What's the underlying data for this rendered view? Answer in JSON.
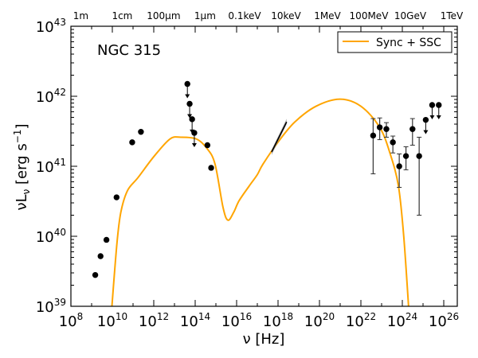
{
  "chart_data": {
    "type": "scatter",
    "annotation": "NGC 315",
    "xlabel": "ν [Hz]",
    "ylabel": "νL",
    "ylabel_sub": "ν",
    "ylabel_unit": " [erg s",
    "ylabel_unit_sup": "−1",
    "ylabel_close": "]",
    "x_scale": "log",
    "y_scale": "log",
    "xlim": [
      100000000.0,
      4.5e+26
    ],
    "ylim": [
      1e+39,
      1e+43
    ],
    "x_tick_exponents": [
      "8",
      "10",
      "12",
      "14",
      "16",
      "18",
      "20",
      "22",
      "24",
      "26"
    ],
    "y_tick_exponents": [
      "39",
      "40",
      "41",
      "42",
      "43"
    ],
    "tick_base": "10",
    "top_axis_labels": [
      {
        "label": "1m",
        "nu": 300000000.0
      },
      {
        "label": "1cm",
        "nu": 30000000000.0
      },
      {
        "label": "100μm",
        "nu": 3000000000000.0
      },
      {
        "label": "1μm",
        "nu": 300000000000000.0
      },
      {
        "label": "0.1keV",
        "nu": 2.42e+16
      },
      {
        "label": "10keV",
        "nu": 2.42e+18
      },
      {
        "label": "1MeV",
        "nu": 2.42e+20
      },
      {
        "label": "100MeV",
        "nu": 2.42e+22
      },
      {
        "label": "10GeV",
        "nu": 2.42e+24
      },
      {
        "label": "1TeV",
        "nu": 2.42e+26
      }
    ],
    "legend": {
      "placement": "top-right",
      "entries": [
        {
          "name": "Sync + SSC",
          "color": "#ffa500"
        }
      ]
    },
    "model_color": "#ffa500",
    "point_color": "#000000",
    "model_curve": [
      [
        9000000000.0,
        8e+38
      ],
      [
        16600000000.0,
        7.8e+39
      ],
      [
        25700000000.0,
        2.2e+40
      ],
      [
        54000000000.0,
        4.5e+40
      ],
      [
        174000000000.0,
        6.9e+40
      ],
      [
        1020000000000.0,
        1.38e+41
      ],
      [
        6000000000000.0,
        2.45e+41
      ],
      [
        20000000000000.0,
        2.6e+41
      ],
      [
        115000000000000.0,
        2.45e+41
      ],
      [
        380000000000000.0,
        1.78e+41
      ],
      [
        910000000000000.0,
        1.07e+41
      ],
      [
        2200000000000000.0,
        2.6e+40
      ],
      [
        3800000000000000.0,
        1.7e+40
      ],
      [
        7200000000000000.0,
        2.2e+40
      ],
      [
        1.3e+16,
        3.2e+40
      ],
      [
        4e+16,
        5.2e+40
      ],
      [
        1e+17,
        7.6e+40
      ],
      [
        1.86e+17,
        1.07e+41
      ],
      [
        1.1e+18,
        2.3e+41
      ],
      [
        6.5e+18,
        4.3e+41
      ],
      [
        6.8e+19,
        7.2e+41
      ],
      [
        9.8e+20,
        9.1e+41
      ],
      [
        1e+22,
        7.2e+41
      ],
      [
        8.1e+22,
        3.6e+41
      ],
      [
        2.6e+23,
        1.5e+41
      ],
      [
        6.5e+23,
        5.2e+40
      ],
      [
        1.17e+24,
        1e+40
      ],
      [
        2.1e+24,
        8e+38
      ]
    ],
    "detections": [
      {
        "x": 1500000000.0,
        "y": 2.8e+39
      },
      {
        "x": 2700000000.0,
        "y": 5.2e+39
      },
      {
        "x": 5200000000.0,
        "y": 8.9e+39
      },
      {
        "x": 16000000000.0,
        "y": 3.6e+40
      },
      {
        "x": 91000000000.0,
        "y": 2.2e+41
      },
      {
        "x": 240000000000.0,
        "y": 3.1e+41
      },
      {
        "x": 390000000000000.0,
        "y": 2e+41
      },
      {
        "x": 590000000000000.0,
        "y": 9.5e+40
      },
      {
        "x": 3.9e+22,
        "y": 2.75e+41,
        "ylo": 7.8e+40,
        "yhi": 4.8e+41
      },
      {
        "x": 8.1e+22,
        "y": 3.6e+41,
        "ylo": 2.4e+41,
        "yhi": 4.9e+41
      },
      {
        "x": 1.7e+23,
        "y": 3.4e+41,
        "ylo": 2.6e+41,
        "yhi": 4.2e+41
      },
      {
        "x": 3.5e+23,
        "y": 2.2e+41,
        "ylo": 1.55e+41,
        "yhi": 2.7e+41
      },
      {
        "x": 7.1e+23,
        "y": 1e+41,
        "ylo": 5e+40,
        "yhi": 1.5e+41
      },
      {
        "x": 1.5e+24,
        "y": 1.4e+41,
        "ylo": 8.9e+40,
        "yhi": 1.9e+41
      },
      {
        "x": 3.1e+24,
        "y": 3.4e+41,
        "ylo": 2e+41,
        "yhi": 4.8e+41
      },
      {
        "x": 6.5e+24,
        "y": 1.4e+41,
        "ylo": 2e+40,
        "yhi": 2.6e+41
      }
    ],
    "upper_limits": [
      {
        "x": 42000000000000.0,
        "y": 1.5e+42
      },
      {
        "x": 54000000000000.0,
        "y": 7.8e+41
      },
      {
        "x": 71000000000000.0,
        "y": 4.7e+41
      },
      {
        "x": 91000000000000.0,
        "y": 3e+41
      },
      {
        "x": 1.35e+25,
        "y": 4.6e+41
      },
      {
        "x": 2.75e+25,
        "y": 7.5e+41
      },
      {
        "x": 5.75e+25,
        "y": 7.5e+41
      }
    ],
    "xray_bowtie": [
      [
        4.9e+17,
        1.6e+41
      ],
      [
        2.6e+18,
        4.3e+41
      ]
    ]
  }
}
